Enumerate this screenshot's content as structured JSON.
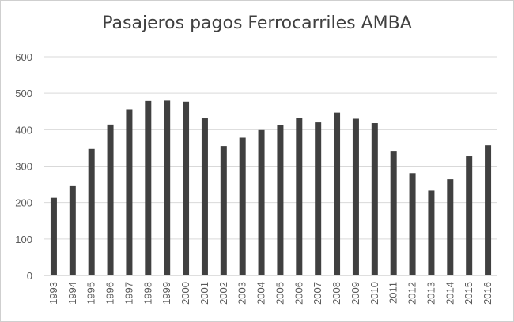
{
  "chart_data": {
    "type": "bar",
    "title": "Pasajeros pagos Ferrocarriles AMBA",
    "xlabel": "",
    "ylabel": "",
    "categories": [
      "1993",
      "1994",
      "1995",
      "1996",
      "1997",
      "1998",
      "1999",
      "2000",
      "2001",
      "2002",
      "2003",
      "2004",
      "2005",
      "2006",
      "2007",
      "2008",
      "2009",
      "2010",
      "2011",
      "2012",
      "2013",
      "2014",
      "2015",
      "2016"
    ],
    "values": [
      213,
      245,
      347,
      414,
      456,
      479,
      480,
      477,
      431,
      355,
      378,
      399,
      412,
      432,
      420,
      447,
      430,
      418,
      342,
      281,
      233,
      264,
      327,
      357
    ],
    "ylim": [
      0,
      600
    ],
    "yticks": [
      "0",
      "100",
      "200",
      "300",
      "400",
      "500",
      "600"
    ],
    "grid": true,
    "legend": "none",
    "bar_color": "#404040",
    "grid_color": "#d9d9d9"
  }
}
